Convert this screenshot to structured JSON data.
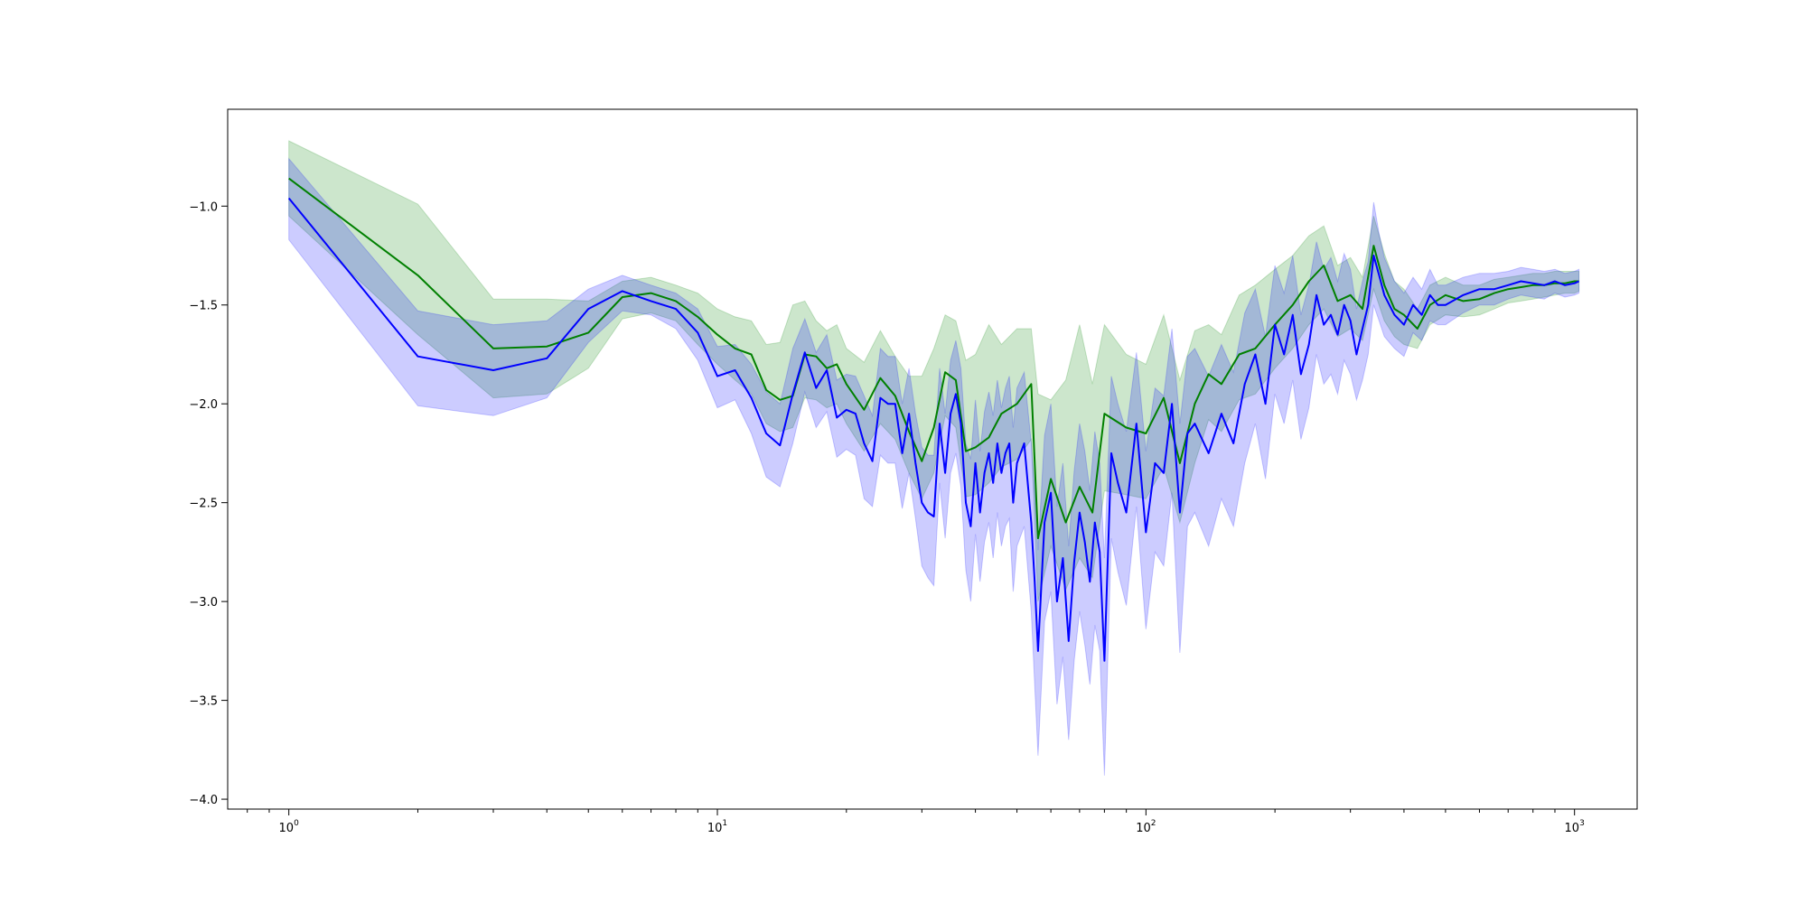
{
  "chart_data": {
    "type": "line",
    "title": "",
    "xlabel": "",
    "ylabel": "",
    "xscale": "log",
    "xlim": [
      0.72,
      1400
    ],
    "ylim": [
      -4.05,
      -0.51
    ],
    "grid": false,
    "legend": "none",
    "x_ticks": [
      {
        "value": 1,
        "base": "10",
        "exp": "0"
      },
      {
        "value": 10,
        "base": "10",
        "exp": "1"
      },
      {
        "value": 100,
        "base": "10",
        "exp": "2"
      },
      {
        "value": 1000,
        "base": "10",
        "exp": "3"
      }
    ],
    "y_ticks": [
      {
        "value": -1.0,
        "label": "−1.0"
      },
      {
        "value": -1.5,
        "label": "−1.5"
      },
      {
        "value": -2.0,
        "label": "−2.0"
      },
      {
        "value": -2.5,
        "label": "−2.5"
      },
      {
        "value": -3.0,
        "label": "−3.0"
      },
      {
        "value": -3.5,
        "label": "−3.5"
      },
      {
        "value": -4.0,
        "label": "−4.0"
      }
    ],
    "series": [
      {
        "color": "#008000",
        "band_color": "#008000",
        "band_opacity": 0.2,
        "x": [
          1,
          2,
          3,
          4,
          5,
          6,
          7,
          8,
          9,
          10,
          11,
          12,
          13,
          14,
          15,
          16,
          17,
          18,
          19,
          20,
          22,
          24,
          26,
          28,
          30,
          32,
          34,
          36,
          38,
          40,
          43,
          46,
          50,
          54,
          56,
          60,
          65,
          70,
          75,
          80,
          90,
          100,
          110,
          120,
          130,
          140,
          150,
          165,
          180,
          200,
          220,
          240,
          260,
          280,
          300,
          320,
          340,
          360,
          380,
          400,
          430,
          460,
          500,
          550,
          600,
          650,
          700,
          750,
          800,
          850,
          900,
          950,
          1000,
          1024
        ],
        "y": [
          -0.86,
          -1.35,
          -1.72,
          -1.71,
          -1.64,
          -1.46,
          -1.44,
          -1.48,
          -1.56,
          -1.65,
          -1.72,
          -1.75,
          -1.93,
          -1.98,
          -1.96,
          -1.75,
          -1.76,
          -1.82,
          -1.8,
          -1.9,
          -2.03,
          -1.87,
          -1.96,
          -2.14,
          -2.29,
          -2.12,
          -1.84,
          -1.88,
          -2.24,
          -2.22,
          -2.17,
          -2.05,
          -2.0,
          -1.9,
          -2.68,
          -2.38,
          -2.6,
          -2.42,
          -2.55,
          -2.05,
          -2.12,
          -2.15,
          -1.97,
          -2.3,
          -2.0,
          -1.85,
          -1.9,
          -1.75,
          -1.72,
          -1.6,
          -1.5,
          -1.38,
          -1.3,
          -1.48,
          -1.45,
          -1.52,
          -1.2,
          -1.4,
          -1.52,
          -1.55,
          -1.62,
          -1.5,
          -1.45,
          -1.48,
          -1.47,
          -1.44,
          -1.42,
          -1.41,
          -1.4,
          -1.4,
          -1.39,
          -1.39,
          -1.38,
          -1.38
        ],
        "lower": [
          -1.05,
          -1.65,
          -1.97,
          -1.95,
          -1.82,
          -1.57,
          -1.54,
          -1.58,
          -1.7,
          -1.8,
          -1.88,
          -1.95,
          -2.1,
          -2.14,
          -2.12,
          -1.97,
          -1.98,
          -2.02,
          -2.0,
          -2.1,
          -2.24,
          -2.1,
          -2.18,
          -2.35,
          -2.48,
          -2.35,
          -2.06,
          -2.12,
          -2.47,
          -2.46,
          -2.4,
          -2.32,
          -2.28,
          -2.18,
          -3.0,
          -2.72,
          -2.94,
          -2.78,
          -2.88,
          -2.44,
          -2.46,
          -2.48,
          -2.32,
          -2.6,
          -2.3,
          -2.08,
          -2.14,
          -1.98,
          -1.95,
          -1.82,
          -1.72,
          -1.6,
          -1.52,
          -1.66,
          -1.62,
          -1.68,
          -1.42,
          -1.58,
          -1.66,
          -1.7,
          -1.72,
          -1.6,
          -1.55,
          -1.56,
          -1.55,
          -1.52,
          -1.49,
          -1.48,
          -1.47,
          -1.46,
          -1.45,
          -1.44,
          -1.44,
          -1.43
        ],
        "upper": [
          -0.67,
          -0.99,
          -1.47,
          -1.47,
          -1.48,
          -1.38,
          -1.36,
          -1.4,
          -1.44,
          -1.52,
          -1.56,
          -1.58,
          -1.7,
          -1.69,
          -1.5,
          -1.48,
          -1.58,
          -1.63,
          -1.6,
          -1.72,
          -1.79,
          -1.63,
          -1.76,
          -1.86,
          -1.86,
          -1.72,
          -1.55,
          -1.58,
          -1.78,
          -1.75,
          -1.6,
          -1.7,
          -1.62,
          -1.62,
          -1.95,
          -1.98,
          -1.88,
          -1.6,
          -1.9,
          -1.6,
          -1.75,
          -1.8,
          -1.55,
          -1.88,
          -1.63,
          -1.6,
          -1.65,
          -1.45,
          -1.4,
          -1.32,
          -1.25,
          -1.15,
          -1.1,
          -1.3,
          -1.26,
          -1.36,
          -1.05,
          -1.24,
          -1.38,
          -1.42,
          -1.52,
          -1.4,
          -1.36,
          -1.4,
          -1.4,
          -1.37,
          -1.36,
          -1.35,
          -1.34,
          -1.34,
          -1.33,
          -1.33,
          -1.33,
          -1.33
        ]
      },
      {
        "color": "#0000ff",
        "band_color": "#0000ff",
        "band_opacity": 0.2,
        "x": [
          1,
          2,
          3,
          4,
          5,
          6,
          7,
          8,
          9,
          10,
          11,
          12,
          13,
          14,
          15,
          16,
          17,
          18,
          19,
          20,
          21,
          22,
          23,
          24,
          25,
          26,
          27,
          28,
          29,
          30,
          31,
          32,
          33,
          34,
          35,
          36,
          37,
          38,
          39,
          40,
          41,
          42,
          43,
          44,
          45,
          46,
          47,
          48,
          49,
          50,
          52,
          54,
          55,
          56,
          58,
          60,
          62,
          64,
          66,
          68,
          70,
          72,
          74,
          76,
          78,
          80,
          83,
          86,
          90,
          95,
          100,
          105,
          110,
          115,
          120,
          125,
          130,
          140,
          150,
          160,
          170,
          180,
          190,
          200,
          210,
          220,
          230,
          240,
          250,
          260,
          270,
          280,
          290,
          300,
          310,
          320,
          330,
          340,
          350,
          360,
          380,
          400,
          420,
          440,
          460,
          480,
          500,
          550,
          600,
          650,
          700,
          750,
          800,
          850,
          900,
          950,
          1000,
          1024
        ],
        "y": [
          -0.96,
          -1.76,
          -1.83,
          -1.77,
          -1.52,
          -1.43,
          -1.48,
          -1.52,
          -1.64,
          -1.86,
          -1.83,
          -1.97,
          -2.15,
          -2.21,
          -1.95,
          -1.74,
          -1.92,
          -1.83,
          -2.07,
          -2.03,
          -2.05,
          -2.2,
          -2.29,
          -1.97,
          -2.0,
          -2.0,
          -2.25,
          -2.05,
          -2.3,
          -2.5,
          -2.55,
          -2.57,
          -2.1,
          -2.35,
          -2.05,
          -1.95,
          -2.1,
          -2.5,
          -2.62,
          -2.3,
          -2.55,
          -2.35,
          -2.25,
          -2.4,
          -2.2,
          -2.35,
          -2.25,
          -2.2,
          -2.5,
          -2.3,
          -2.2,
          -2.6,
          -2.9,
          -3.25,
          -2.6,
          -2.45,
          -3.0,
          -2.78,
          -3.2,
          -2.8,
          -2.55,
          -2.7,
          -2.9,
          -2.6,
          -2.75,
          -3.3,
          -2.25,
          -2.4,
          -2.55,
          -2.1,
          -2.65,
          -2.3,
          -2.35,
          -2.0,
          -2.55,
          -2.15,
          -2.1,
          -2.25,
          -2.05,
          -2.2,
          -1.9,
          -1.75,
          -2.0,
          -1.6,
          -1.75,
          -1.55,
          -1.85,
          -1.7,
          -1.45,
          -1.6,
          -1.55,
          -1.65,
          -1.5,
          -1.58,
          -1.75,
          -1.62,
          -1.5,
          -1.25,
          -1.35,
          -1.45,
          -1.55,
          -1.6,
          -1.5,
          -1.55,
          -1.45,
          -1.5,
          -1.5,
          -1.45,
          -1.42,
          -1.42,
          -1.4,
          -1.38,
          -1.39,
          -1.4,
          -1.38,
          -1.4,
          -1.39,
          -1.38
        ],
        "lower": [
          -1.17,
          -2.01,
          -2.06,
          -1.97,
          -1.69,
          -1.53,
          -1.55,
          -1.62,
          -1.78,
          -2.02,
          -1.98,
          -2.15,
          -2.37,
          -2.42,
          -2.2,
          -1.94,
          -2.12,
          -2.04,
          -2.27,
          -2.23,
          -2.26,
          -2.48,
          -2.52,
          -2.26,
          -2.3,
          -2.3,
          -2.53,
          -2.35,
          -2.58,
          -2.82,
          -2.88,
          -2.92,
          -2.4,
          -2.68,
          -2.35,
          -2.25,
          -2.42,
          -2.84,
          -3.0,
          -2.66,
          -2.9,
          -2.7,
          -2.6,
          -2.78,
          -2.55,
          -2.72,
          -2.62,
          -2.58,
          -2.95,
          -2.72,
          -2.62,
          -3.05,
          -3.42,
          -3.78,
          -3.1,
          -2.95,
          -3.52,
          -3.28,
          -3.7,
          -3.3,
          -3.05,
          -3.22,
          -3.42,
          -3.12,
          -3.25,
          -3.88,
          -2.68,
          -2.85,
          -3.02,
          -2.52,
          -3.14,
          -2.75,
          -2.82,
          -2.45,
          -3.26,
          -2.62,
          -2.55,
          -2.72,
          -2.48,
          -2.62,
          -2.3,
          -2.1,
          -2.38,
          -1.95,
          -2.1,
          -1.88,
          -2.18,
          -2.02,
          -1.75,
          -1.9,
          -1.85,
          -1.95,
          -1.78,
          -1.85,
          -1.98,
          -1.88,
          -1.75,
          -1.5,
          -1.58,
          -1.66,
          -1.72,
          -1.76,
          -1.64,
          -1.68,
          -1.58,
          -1.6,
          -1.6,
          -1.54,
          -1.5,
          -1.5,
          -1.47,
          -1.45,
          -1.46,
          -1.47,
          -1.44,
          -1.46,
          -1.45,
          -1.44
        ],
        "upper": [
          -0.76,
          -1.53,
          -1.6,
          -1.58,
          -1.42,
          -1.35,
          -1.4,
          -1.44,
          -1.52,
          -1.71,
          -1.7,
          -1.8,
          -1.94,
          -2.0,
          -1.72,
          -1.57,
          -1.74,
          -1.65,
          -1.88,
          -1.85,
          -1.86,
          -1.96,
          -2.06,
          -1.72,
          -1.76,
          -1.76,
          -2.0,
          -1.82,
          -2.05,
          -2.22,
          -2.26,
          -2.26,
          -1.82,
          -2.05,
          -1.78,
          -1.68,
          -1.82,
          -2.2,
          -2.28,
          -1.98,
          -2.24,
          -2.04,
          -1.94,
          -2.06,
          -1.88,
          -2.02,
          -1.92,
          -1.86,
          -2.12,
          -1.92,
          -1.84,
          -2.2,
          -2.44,
          -2.74,
          -2.16,
          -2.0,
          -2.52,
          -2.3,
          -2.72,
          -2.34,
          -2.1,
          -2.24,
          -2.44,
          -2.14,
          -2.3,
          -2.78,
          -1.86,
          -2.0,
          -2.14,
          -1.74,
          -2.24,
          -1.92,
          -1.96,
          -1.62,
          -2.1,
          -1.76,
          -1.72,
          -1.86,
          -1.7,
          -1.84,
          -1.54,
          -1.42,
          -1.66,
          -1.3,
          -1.44,
          -1.25,
          -1.55,
          -1.4,
          -1.18,
          -1.32,
          -1.26,
          -1.38,
          -1.24,
          -1.32,
          -1.52,
          -1.38,
          -1.28,
          -0.98,
          -1.14,
          -1.26,
          -1.38,
          -1.44,
          -1.36,
          -1.42,
          -1.32,
          -1.4,
          -1.4,
          -1.36,
          -1.34,
          -1.34,
          -1.33,
          -1.31,
          -1.32,
          -1.33,
          -1.32,
          -1.34,
          -1.33,
          -1.32
        ]
      }
    ]
  }
}
